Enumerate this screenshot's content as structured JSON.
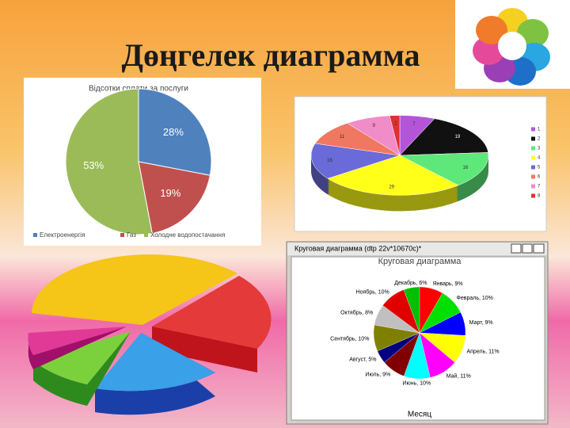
{
  "slide_title": "Дөңгелек диаграмма",
  "chart_data": [
    {
      "type": "pie",
      "title": "Відсотки сплати за послуги",
      "categories": [
        "Електроенергія",
        "Газ",
        "Холодне водопостачання"
      ],
      "values": [
        28,
        19,
        53
      ],
      "value_labels": [
        "28%",
        "19%",
        "53%"
      ],
      "colors": [
        "#4f81bd",
        "#c0504d",
        "#9bbb59"
      ],
      "legend": "bottom"
    },
    {
      "type": "pie3d",
      "categories": [
        "1",
        "2",
        "3",
        "4",
        "5",
        "6",
        "7",
        "8"
      ],
      "values": [
        7,
        19,
        16,
        29,
        16,
        11,
        9,
        2
      ],
      "colors": [
        "#b455d9",
        "#111111",
        "#5ee87a",
        "#ffff1a",
        "#6a6ad8",
        "#f07860",
        "#f08cc8",
        "#e03030"
      ],
      "legend": "right"
    },
    {
      "type": "pie",
      "window_title": "Круговая диаграмма (dtp 22v*10670c)*",
      "title": "Круговая диаграмма",
      "x_label": "Месяц",
      "values": [
        9,
        10,
        9,
        11,
        11,
        10,
        9,
        5,
        10,
        8,
        10,
        6
      ],
      "value_labels": [
        "Январь, 9%",
        "Февраль, 10%",
        "Март, 9%",
        "Апрель, 11%",
        "Май, 11%",
        "Июнь, 10%",
        "Июль, 9%",
        "Август, 5%",
        "Сентябрь, 10%",
        "Октябрь, 8%",
        "Ноябрь, 10%",
        "Декабрь, 6%"
      ],
      "colors": [
        "#ff0000",
        "#00e000",
        "#0000ff",
        "#ffff00",
        "#ff00ff",
        "#00ffff",
        "#800000",
        "#000080",
        "#808000",
        "#c0c0c0",
        "#e00000",
        "#00c000"
      ]
    }
  ]
}
